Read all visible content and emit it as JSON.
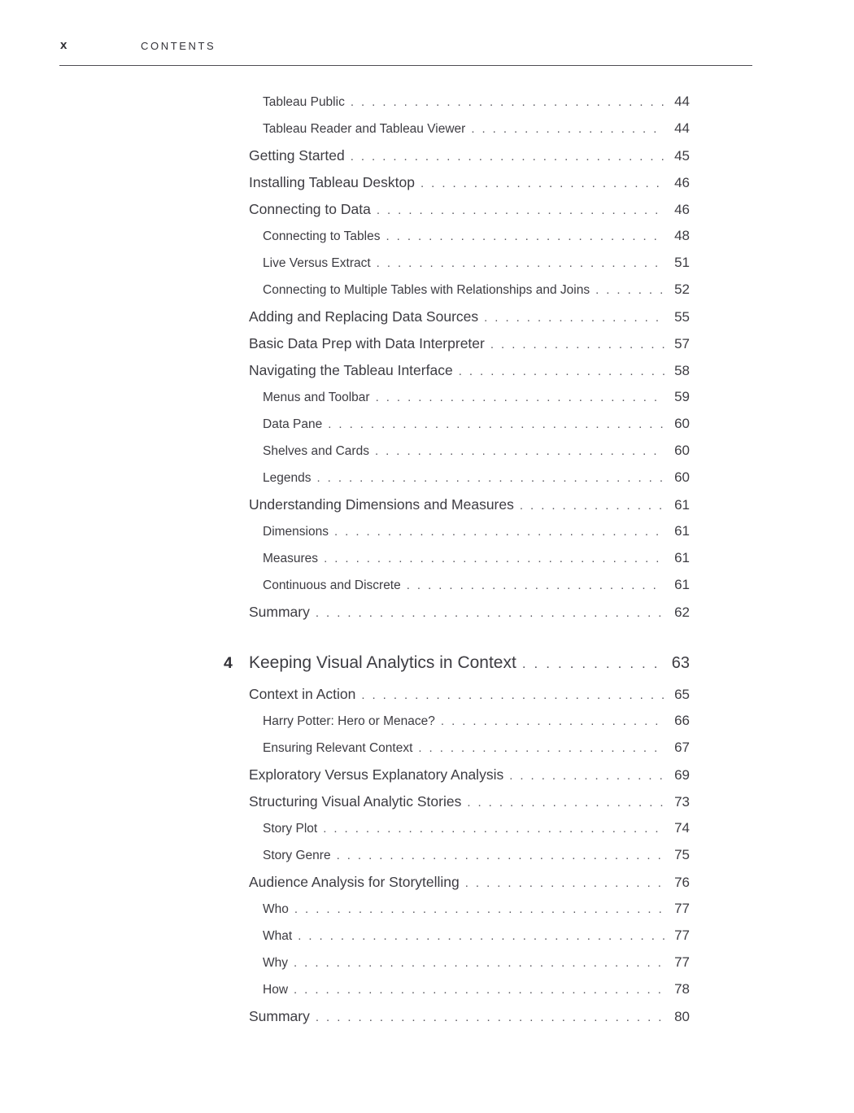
{
  "page": {
    "folio": "x",
    "header": "CONTENTS"
  },
  "colors": {
    "ink": "#3d3c42",
    "leader_dots": "#5a5960",
    "rule": "#4e4d53"
  },
  "toc": {
    "sections": [
      {
        "entries": [
          {
            "level": 2,
            "title": "Tableau Public",
            "page": "44"
          },
          {
            "level": 2,
            "title": "Tableau Reader and Tableau Viewer",
            "page": "44"
          },
          {
            "level": 1,
            "title": "Getting Started",
            "page": "45"
          },
          {
            "level": 1,
            "title": "Installing Tableau Desktop",
            "page": "46"
          },
          {
            "level": 1,
            "title": "Connecting to Data",
            "page": "46"
          },
          {
            "level": 2,
            "title": "Connecting to Tables",
            "page": "48"
          },
          {
            "level": 2,
            "title": "Live Versus Extract",
            "page": "51"
          },
          {
            "level": 2,
            "title": "Connecting to Multiple Tables with Relationships and Joins",
            "page": "52"
          },
          {
            "level": 1,
            "title": "Adding and Replacing Data Sources",
            "page": "55"
          },
          {
            "level": 1,
            "title": "Basic Data Prep with Data Interpreter",
            "page": "57"
          },
          {
            "level": 1,
            "title": "Navigating the Tableau Interface",
            "page": "58"
          },
          {
            "level": 2,
            "title": "Menus and Toolbar",
            "page": "59"
          },
          {
            "level": 2,
            "title": "Data Pane",
            "page": "60"
          },
          {
            "level": 2,
            "title": "Shelves and Cards",
            "page": "60"
          },
          {
            "level": 2,
            "title": "Legends",
            "page": "60"
          },
          {
            "level": 1,
            "title": "Understanding Dimensions and Measures",
            "page": "61"
          },
          {
            "level": 2,
            "title": "Dimensions",
            "page": "61"
          },
          {
            "level": 2,
            "title": "Measures",
            "page": "61"
          },
          {
            "level": 2,
            "title": "Continuous and Discrete",
            "page": "61"
          },
          {
            "level": 1,
            "title": "Summary",
            "page": "62"
          }
        ]
      },
      {
        "chapter": {
          "number": "4",
          "title": "Keeping Visual Analytics in Context",
          "page": "63"
        },
        "entries": [
          {
            "level": 1,
            "title": "Context in Action",
            "page": "65"
          },
          {
            "level": 2,
            "title": "Harry Potter: Hero or Menace?",
            "page": "66"
          },
          {
            "level": 2,
            "title": "Ensuring Relevant Context",
            "page": "67"
          },
          {
            "level": 1,
            "title": "Exploratory Versus Explanatory Analysis",
            "page": "69"
          },
          {
            "level": 1,
            "title": "Structuring Visual Analytic Stories",
            "page": "73"
          },
          {
            "level": 2,
            "title": "Story Plot",
            "page": "74"
          },
          {
            "level": 2,
            "title": "Story Genre",
            "page": "75"
          },
          {
            "level": 1,
            "title": "Audience Analysis for Storytelling",
            "page": "76"
          },
          {
            "level": 2,
            "title": "Who",
            "page": "77"
          },
          {
            "level": 2,
            "title": "What",
            "page": "77"
          },
          {
            "level": 2,
            "title": "Why",
            "page": "77"
          },
          {
            "level": 2,
            "title": "How",
            "page": "78"
          },
          {
            "level": 1,
            "title": "Summary",
            "page": "80"
          }
        ]
      }
    ]
  }
}
